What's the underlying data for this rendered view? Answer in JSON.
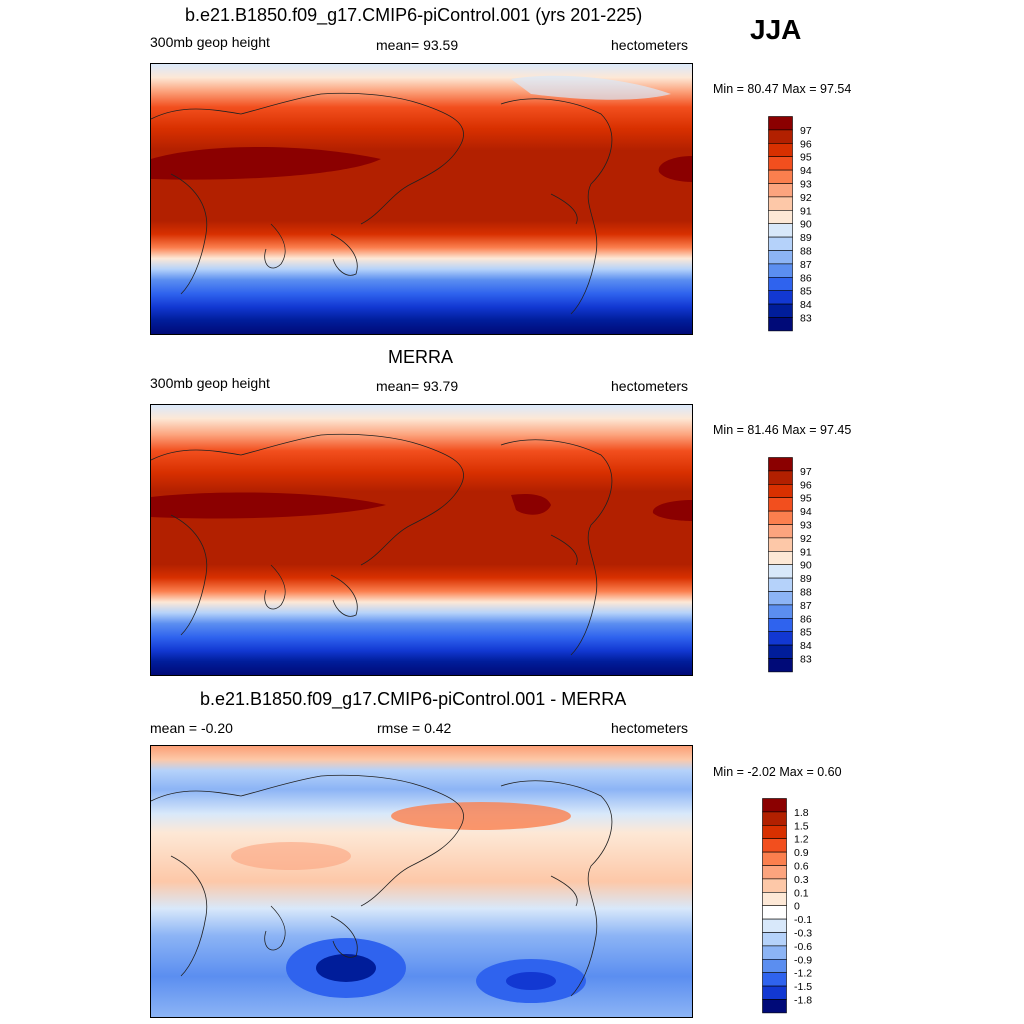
{
  "season": "JJA",
  "panels": [
    {
      "title": "b.e21.B1850.f09_g17.CMIP6-piControl.001 (yrs 201-225)",
      "left": "300mb geop height",
      "center": "mean=  93.59",
      "right": "hectometers",
      "minmax": "Min =  80.47 Max =  97.54",
      "levels": [
        "97",
        "96",
        "95",
        "94",
        "93",
        "92",
        "91",
        "90",
        "89",
        "88",
        "87",
        "86",
        "85",
        "84",
        "83"
      ],
      "colors": [
        "#8b0000",
        "#b22000",
        "#d83000",
        "#f24f1e",
        "#fb7f4e",
        "#fca47e",
        "#fdc8a8",
        "#fde8d6",
        "#d8e8fa",
        "#b5d2fa",
        "#8cb4f5",
        "#5b8ef0",
        "#2f63ee",
        "#1238d2",
        "#001d9a",
        "#000a78"
      ]
    },
    {
      "title": "MERRA",
      "left": "300mb geop height",
      "center": "mean=  93.79",
      "right": "hectometers",
      "minmax": "Min =  81.46 Max =  97.45",
      "levels": [
        "97",
        "96",
        "95",
        "94",
        "93",
        "92",
        "91",
        "90",
        "89",
        "88",
        "87",
        "86",
        "85",
        "84",
        "83"
      ],
      "colors": [
        "#8b0000",
        "#b22000",
        "#d83000",
        "#f24f1e",
        "#fb7f4e",
        "#fca47e",
        "#fdc8a8",
        "#fde8d6",
        "#d8e8fa",
        "#b5d2fa",
        "#8cb4f5",
        "#5b8ef0",
        "#2f63ee",
        "#1238d2",
        "#001d9a",
        "#000a78"
      ]
    },
    {
      "title": "b.e21.B1850.f09_g17.CMIP6-piControl.001 - MERRA",
      "left": "mean =  -0.20",
      "center": "rmse =   0.42",
      "right": "hectometers",
      "minmax": "Min =  -2.02 Max =   0.60",
      "levels": [
        "1.8",
        "1.5",
        "1.2",
        "0.9",
        "0.6",
        "0.3",
        "0.1",
        "0",
        "-0.1",
        "-0.3",
        "-0.6",
        "-0.9",
        "-1.2",
        "-1.5",
        "-1.8"
      ],
      "colors": [
        "#8b0000",
        "#b22000",
        "#d83000",
        "#f24f1e",
        "#fb7f4e",
        "#fca47e",
        "#fdc8a8",
        "#fde8d6",
        "#ffffff",
        "#d8e8fa",
        "#b5d2fa",
        "#8cb4f5",
        "#5b8ef0",
        "#2f63ee",
        "#1238d2",
        "#000a78"
      ]
    }
  ]
}
